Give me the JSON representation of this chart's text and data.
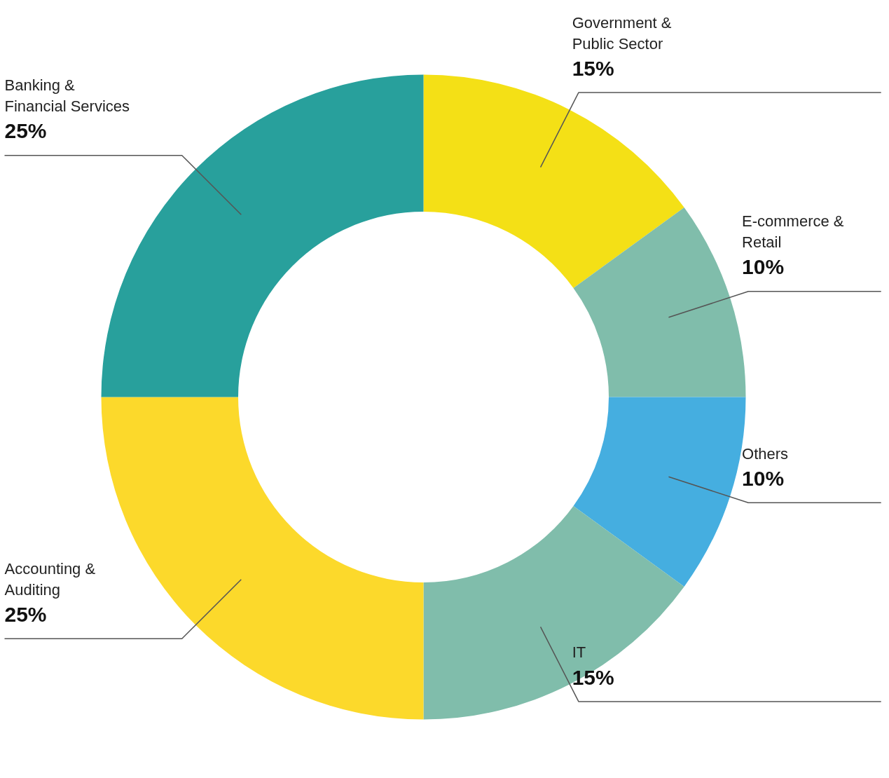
{
  "chart_data": {
    "type": "donut",
    "categories": [
      "Government & Public Sector",
      "E-commerce & Retail",
      "Others",
      "IT",
      "Accounting & Auditing",
      "Banking & Financial Services"
    ],
    "values": [
      15,
      10,
      10,
      15,
      25,
      25
    ],
    "colors": [
      "#f4e016",
      "#80bdab",
      "#45aee0",
      "#80bdab",
      "#fcd92b",
      "#28a09c"
    ],
    "value_labels": [
      "15%",
      "10%",
      "10%",
      "15%",
      "25%",
      "25%"
    ]
  }
}
